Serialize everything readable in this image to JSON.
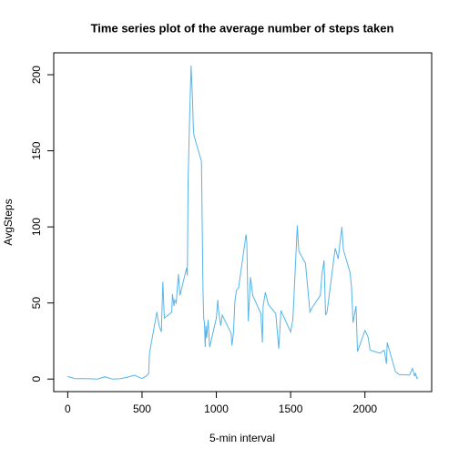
{
  "chart_data": {
    "type": "line",
    "title": "Time series plot of the average number of steps taken",
    "x_label": "5-min interval",
    "y_label": "AvgSteps",
    "color": "#56B4E9",
    "xlim": [
      -94.2,
      2449.2
    ],
    "ylim": [
      -8.25,
      214.4
    ],
    "xticks": [
      0,
      500,
      1000,
      1500,
      2000
    ],
    "yticks": [
      0,
      50,
      100,
      150,
      200
    ],
    "x": [
      0,
      50,
      100,
      150,
      200,
      250,
      300,
      350,
      400,
      450,
      500,
      530,
      545,
      550,
      600,
      615,
      630,
      640,
      650,
      700,
      705,
      715,
      720,
      730,
      745,
      755,
      800,
      805,
      810,
      820,
      830,
      835,
      840,
      845,
      850,
      900,
      910,
      915,
      920,
      925,
      930,
      935,
      945,
      955,
      1000,
      1010,
      1015,
      1030,
      1040,
      1100,
      1105,
      1115,
      1125,
      1135,
      1150,
      1200,
      1205,
      1215,
      1230,
      1245,
      1300,
      1310,
      1315,
      1330,
      1350,
      1400,
      1420,
      1435,
      1500,
      1515,
      1545,
      1555,
      1600,
      1630,
      1645,
      1700,
      1710,
      1725,
      1735,
      1745,
      1800,
      1820,
      1845,
      1855,
      1900,
      1910,
      1920,
      1940,
      1950,
      2000,
      2020,
      2035,
      2100,
      2130,
      2145,
      2150,
      2205,
      2230,
      2300,
      2320,
      2335,
      2340,
      2350,
      2355
    ],
    "series": [
      {
        "name": "AvgSteps",
        "color": "#56B4E9",
        "values": [
          1.7,
          0.3,
          0.3,
          0.2,
          0,
          1.5,
          0,
          0.2,
          1.2,
          2.5,
          0.3,
          2.2,
          3.5,
          17,
          44,
          35,
          31,
          64,
          40,
          44,
          56,
          48,
          52,
          50,
          69,
          55,
          73,
          68,
          130,
          171,
          206,
          195,
          183,
          165,
          160,
          143,
          60,
          40,
          37,
          21,
          35,
          27,
          39,
          21,
          40,
          52,
          45,
          35,
          42,
          30,
          22,
          30,
          51,
          58,
          60,
          95,
          90,
          38,
          67,
          55,
          43,
          24,
          48,
          57,
          49,
          43,
          20,
          45,
          31,
          39,
          101,
          84,
          76,
          44,
          47,
          55,
          68,
          78,
          42,
          44,
          86,
          79,
          100,
          85,
          70,
          60,
          37,
          48,
          18,
          32,
          28,
          19,
          17,
          19,
          10,
          24,
          5,
          3,
          2.6,
          7,
          1.8,
          4,
          0.4,
          1.1
        ]
      }
    ]
  }
}
